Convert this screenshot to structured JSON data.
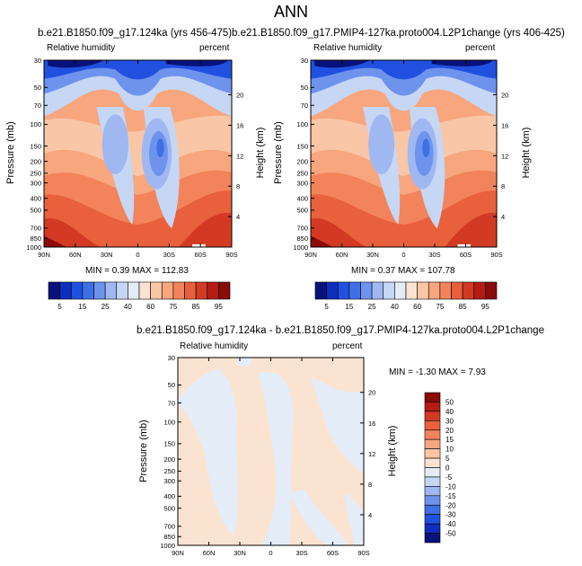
{
  "page_title": "ANN",
  "left_panel": {
    "title": "b.e21.B1850.f09_g17.124ka (yrs 456-475)",
    "variable": "Relative humidity",
    "units": "percent",
    "stats": "MIN =   0.39  MAX = 112.83"
  },
  "right_panel": {
    "title": "b.e21.B1850.f09_g17.PMIP4-127ka.proto004.L2P1change (yrs 406-425)",
    "variable": "Relative humidity",
    "units": "percent",
    "stats": "MIN =   0.37  MAX = 107.78"
  },
  "diff_panel": {
    "title": "b.e21.B1850.f09_g17.124ka - b.e21.B1850.f09_g17.PMIP4-127ka.proto004.L2P1change",
    "variable": "Relative humidity",
    "units": "percent",
    "stats": "MIN =  -1.30  MAX =   7.93"
  },
  "axes": {
    "ylabel": "Pressure (mb)",
    "y2label": "Height (km)"
  },
  "chart_data": {
    "type": "heatmap",
    "x_ticks": [
      "90N",
      "60N",
      "30N",
      "0",
      "30S",
      "60S",
      "90S"
    ],
    "y_ticks": [
      "30",
      "50",
      "70",
      "100",
      "150",
      "200",
      "250",
      "300",
      "400",
      "500",
      "700",
      "850",
      "1000"
    ],
    "y_ticks_values": [
      30,
      50,
      70,
      100,
      150,
      200,
      250,
      300,
      400,
      500,
      700,
      850,
      1000
    ],
    "height_ticks": [
      "20",
      "16",
      "12",
      "8",
      "4"
    ],
    "height_ticks_values": [
      20,
      16,
      12,
      8,
      4
    ],
    "ylim": [
      1000,
      30
    ],
    "abs_colorbar": {
      "labels": [
        "5",
        "15",
        "25",
        "40",
        "60",
        "75",
        "85",
        "95"
      ],
      "colors": [
        "#08127a",
        "#0e2ebd",
        "#2150e0",
        "#3f6fe6",
        "#6e93ec",
        "#9fb8f2",
        "#c6d6f5",
        "#e4ecf8",
        "#fbe3d1",
        "#f9c6a6",
        "#f7a67e",
        "#f3835a",
        "#e8603c",
        "#d33a24",
        "#b51a14",
        "#8b0a0a"
      ]
    },
    "diff_colorbar": {
      "labels": [
        "50",
        "40",
        "30",
        "20",
        "15",
        "10",
        "5",
        "0",
        "-5",
        "-10",
        "-15",
        "-20",
        "-30",
        "-40",
        "-50"
      ],
      "colors": [
        "#8b0a0a",
        "#b51a14",
        "#d33a24",
        "#e8603c",
        "#f3835a",
        "#f7a67e",
        "#f9c6a6",
        "#fbe3d1",
        "#e4ecf8",
        "#c6d6f5",
        "#9fb8f2",
        "#6e93ec",
        "#3f6fe6",
        "#2150e0",
        "#0e2ebd",
        "#08127a"
      ]
    }
  }
}
